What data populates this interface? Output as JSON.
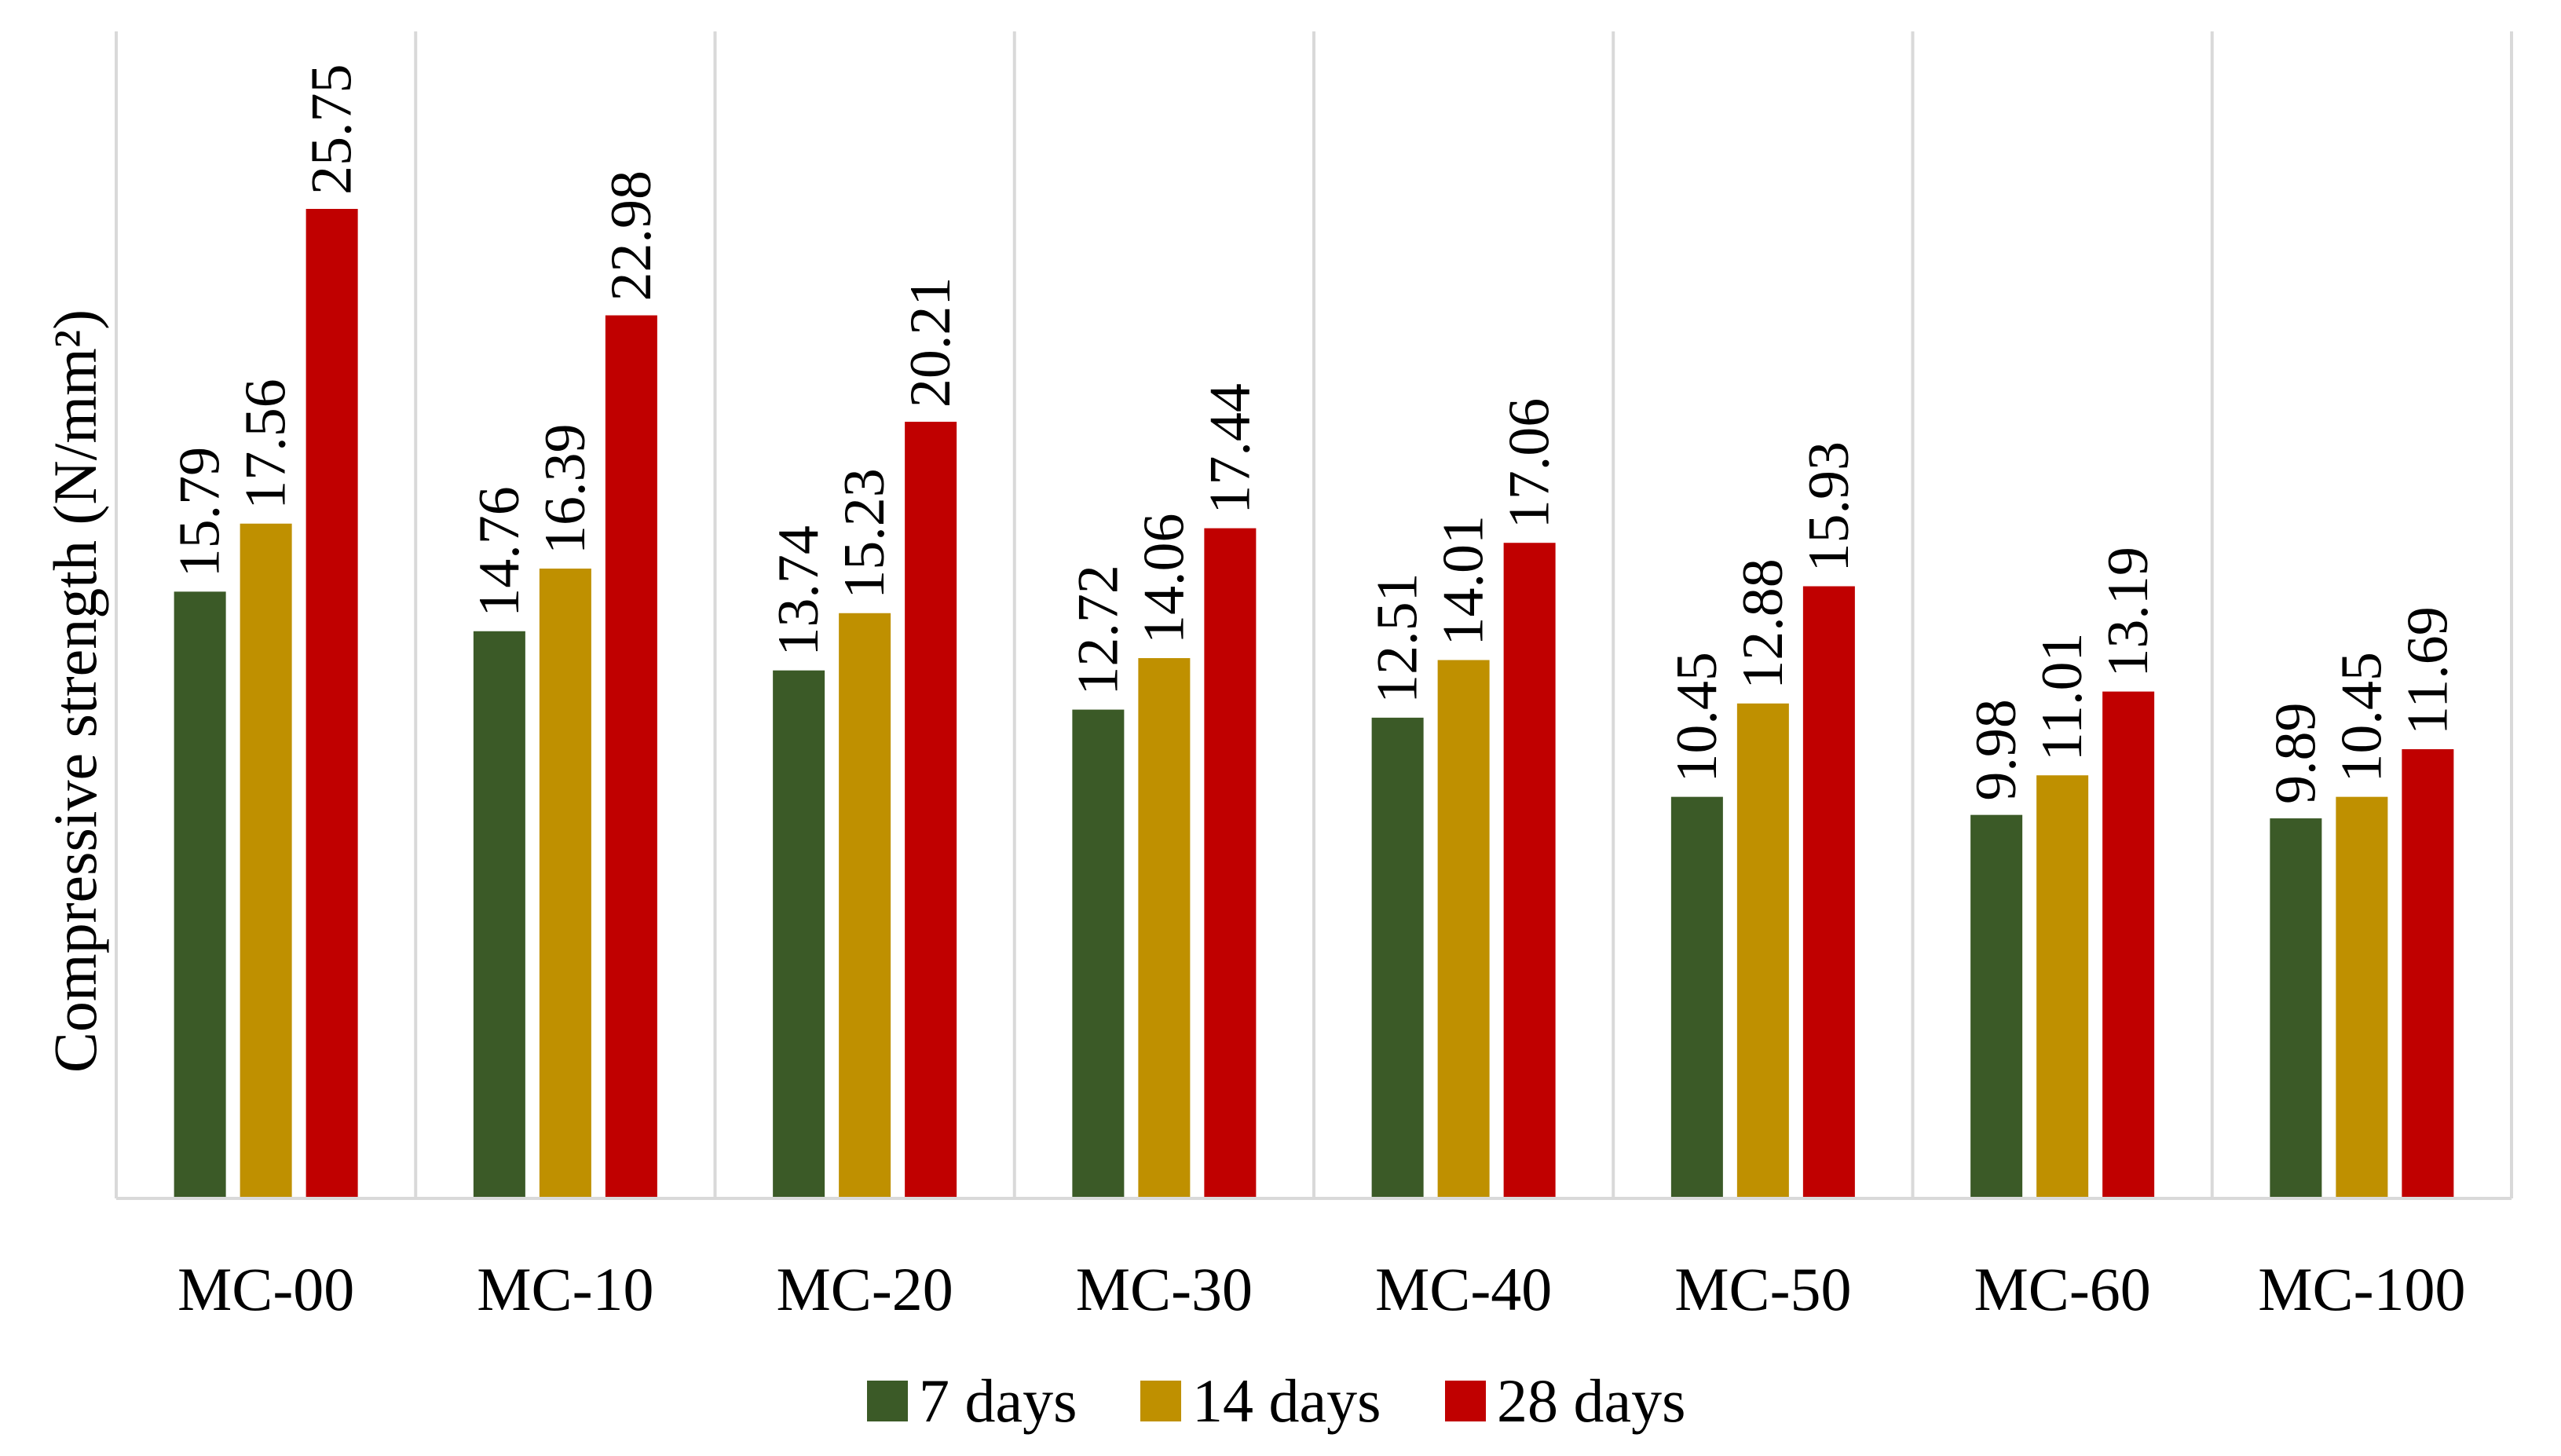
{
  "chart_data": {
    "type": "bar",
    "title": "",
    "xlabel": "",
    "ylabel": "Compressive strength (N/mm²)",
    "ylim": [
      0,
      30
    ],
    "grid": "vertical separators between categories",
    "legend_position": "bottom-center",
    "categories": [
      "MC-00",
      "MC-10",
      "MC-20",
      "MC-30",
      "MC-40",
      "MC-50",
      "MC-60",
      "MC-100"
    ],
    "series": [
      {
        "name": "7 days",
        "color": "#3b5a27",
        "values": [
          15.79,
          14.76,
          13.74,
          12.72,
          12.51,
          10.45,
          9.98,
          9.89
        ],
        "labels": [
          "15.79",
          "14.76",
          "13.74",
          "12.72",
          "12.51",
          "10.45",
          "9.98",
          "9.89"
        ]
      },
      {
        "name": "14 days",
        "color": "#bf9000",
        "values": [
          17.56,
          16.39,
          15.23,
          14.06,
          14.01,
          12.88,
          11.01,
          10.45
        ],
        "labels": [
          "17.56",
          "16.39",
          "15.23",
          "14.06",
          "14.01",
          "12.88",
          "11.01",
          "10.45"
        ]
      },
      {
        "name": "28 days",
        "color": "#c00000",
        "values": [
          25.75,
          22.98,
          20.21,
          17.44,
          17.06,
          15.93,
          13.19,
          11.69
        ],
        "labels": [
          "25.75",
          "22.98",
          "20.21",
          "17.44",
          "17.06",
          "15.93",
          "13.19",
          "11.69"
        ]
      }
    ]
  }
}
